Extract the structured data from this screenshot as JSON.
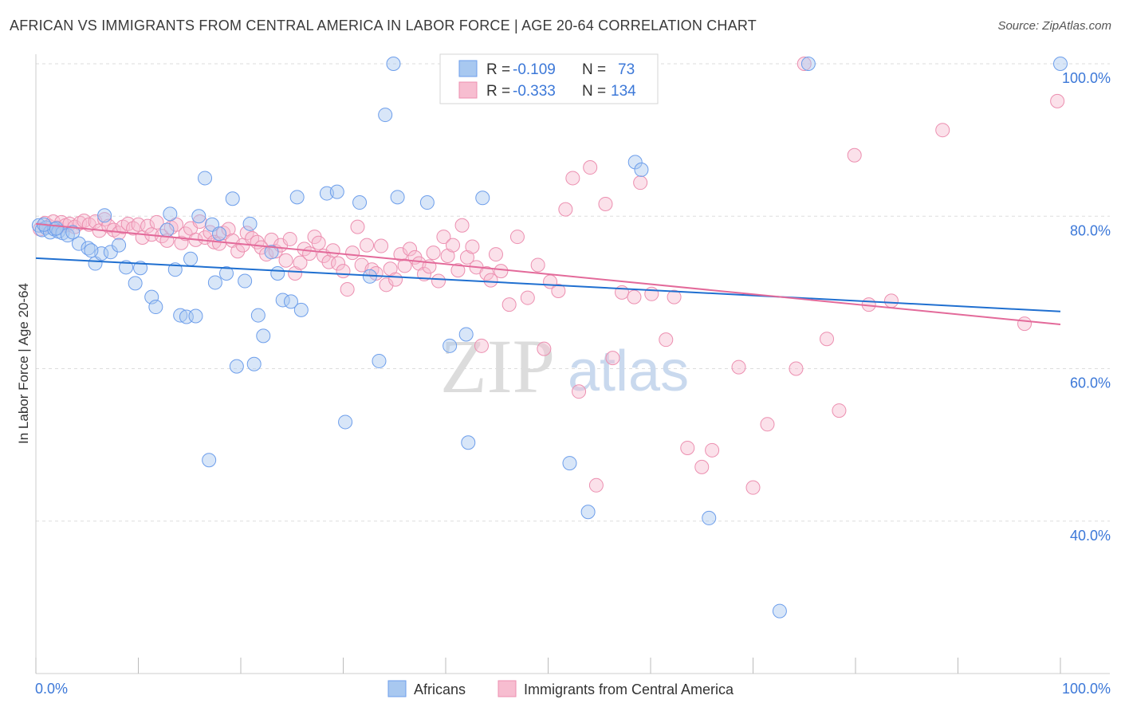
{
  "title": "AFRICAN VS IMMIGRANTS FROM CENTRAL AMERICA IN LABOR FORCE | AGE 20-64 CORRELATION CHART",
  "source": "Source: ZipAtlas.com",
  "watermark": {
    "zip": "ZIP",
    "atlas": "atlas"
  },
  "colors": {
    "blue_fill": "#a8c8f0",
    "blue_stroke": "#6d9eeb",
    "blue_line": "#1f6fd0",
    "pink_fill": "#f7bdd0",
    "pink_stroke": "#ec8fb0",
    "pink_line": "#e36a9a",
    "grid": "#dddddd",
    "axis_label": "#3c78d8"
  },
  "legend": {
    "rows": [
      {
        "r_label": "R =",
        "r_value": "-0.109",
        "n_label": "N =",
        "n_value": "73"
      },
      {
        "r_label": "R =",
        "r_value": "-0.333",
        "n_label": "N =",
        "n_value": "134"
      }
    ]
  },
  "bottom_legend": [
    "Africans",
    "Immigrants from Central America"
  ],
  "chart_data": {
    "type": "scatter",
    "title": "AFRICAN VS IMMIGRANTS FROM CENTRAL AMERICA IN LABOR FORCE | AGE 20-64 CORRELATION CHART",
    "xlabel": "",
    "ylabel": "In Labor Force | Age 20-64",
    "xlim": [
      0,
      100
    ],
    "ylim": [
      20,
      102
    ],
    "x_tick_labels": [
      "0.0%",
      "100.0%"
    ],
    "y_ticks": [
      40,
      60,
      80,
      100
    ],
    "y_tick_labels": [
      "40.0%",
      "60.0%",
      "80.0%",
      "100.0%"
    ],
    "grid": true,
    "legend_position": "top-center",
    "series": [
      {
        "name": "Africans",
        "color": "blue",
        "trend": {
          "x0": 0,
          "y0": 74.5,
          "x1": 100,
          "y1": 67.5
        },
        "points": [
          [
            0.3,
            78.8
          ],
          [
            0.6,
            78.2
          ],
          [
            1.0,
            78.5
          ],
          [
            1.4,
            77.9
          ],
          [
            1.8,
            78.3
          ],
          [
            2.2,
            78.0
          ],
          [
            2.6,
            77.8
          ],
          [
            3.1,
            77.5
          ],
          [
            4.2,
            76.4
          ],
          [
            5.1,
            75.8
          ],
          [
            5.8,
            73.8
          ],
          [
            6.4,
            75.1
          ],
          [
            6.7,
            80.1
          ],
          [
            7.3,
            75.3
          ],
          [
            8.1,
            76.2
          ],
          [
            8.8,
            73.3
          ],
          [
            9.7,
            71.2
          ],
          [
            10.2,
            73.2
          ],
          [
            11.3,
            69.4
          ],
          [
            11.7,
            68.1
          ],
          [
            12.8,
            78.2
          ],
          [
            13.1,
            80.3
          ],
          [
            13.6,
            73.0
          ],
          [
            14.1,
            67.0
          ],
          [
            14.7,
            66.8
          ],
          [
            15.1,
            74.4
          ],
          [
            15.6,
            66.9
          ],
          [
            15.9,
            80.0
          ],
          [
            16.5,
            85.0
          ],
          [
            16.9,
            48.0
          ],
          [
            17.2,
            78.9
          ],
          [
            17.5,
            71.3
          ],
          [
            17.9,
            77.7
          ],
          [
            18.6,
            72.5
          ],
          [
            19.2,
            82.3
          ],
          [
            19.6,
            60.3
          ],
          [
            20.4,
            71.5
          ],
          [
            20.9,
            79.0
          ],
          [
            21.3,
            60.6
          ],
          [
            21.7,
            67.0
          ],
          [
            22.2,
            64.3
          ],
          [
            23.0,
            75.3
          ],
          [
            23.6,
            72.5
          ],
          [
            24.1,
            69.0
          ],
          [
            24.9,
            68.8
          ],
          [
            25.5,
            82.5
          ],
          [
            25.9,
            67.7
          ],
          [
            28.4,
            83.0
          ],
          [
            29.4,
            83.2
          ],
          [
            30.2,
            53.0
          ],
          [
            31.6,
            81.8
          ],
          [
            32.6,
            72.1
          ],
          [
            33.5,
            61.0
          ],
          [
            34.1,
            93.3
          ],
          [
            34.9,
            100.0
          ],
          [
            35.3,
            82.5
          ],
          [
            38.2,
            81.8
          ],
          [
            40.4,
            63.0
          ],
          [
            42.0,
            64.5
          ],
          [
            42.2,
            50.3
          ],
          [
            43.6,
            82.4
          ],
          [
            52.1,
            47.6
          ],
          [
            53.9,
            41.2
          ],
          [
            58.5,
            87.1
          ],
          [
            59.1,
            86.1
          ],
          [
            65.7,
            40.4
          ],
          [
            72.6,
            28.2
          ],
          [
            75.4,
            100.0
          ],
          [
            100.0,
            100.0
          ],
          [
            0.8,
            78.9
          ],
          [
            2.0,
            78.4
          ],
          [
            3.6,
            77.9
          ],
          [
            5.4,
            75.5
          ]
        ]
      },
      {
        "name": "Immigrants from Central America",
        "color": "pink",
        "trend": {
          "x0": 0,
          "y0": 79.0,
          "x1": 100,
          "y1": 65.8
        },
        "points": [
          [
            0.4,
            78.3
          ],
          [
            0.9,
            79.1
          ],
          [
            1.3,
            78.7
          ],
          [
            1.7,
            79.3
          ],
          [
            2.1,
            78.5
          ],
          [
            2.5,
            79.2
          ],
          [
            2.9,
            78.8
          ],
          [
            3.3,
            79.0
          ],
          [
            3.8,
            78.6
          ],
          [
            4.3,
            79.1
          ],
          [
            4.7,
            79.4
          ],
          [
            5.2,
            78.9
          ],
          [
            5.8,
            79.3
          ],
          [
            6.2,
            78.1
          ],
          [
            6.7,
            79.6
          ],
          [
            7.1,
            78.7
          ],
          [
            7.6,
            78.2
          ],
          [
            8.1,
            77.8
          ],
          [
            8.5,
            78.6
          ],
          [
            9.0,
            79.0
          ],
          [
            9.5,
            78.4
          ],
          [
            10.0,
            78.9
          ],
          [
            10.4,
            77.2
          ],
          [
            10.9,
            78.7
          ],
          [
            11.3,
            77.6
          ],
          [
            11.8,
            79.2
          ],
          [
            12.3,
            77.4
          ],
          [
            12.8,
            76.8
          ],
          [
            13.2,
            78.5
          ],
          [
            13.7,
            78.9
          ],
          [
            14.2,
            76.5
          ],
          [
            14.6,
            77.7
          ],
          [
            15.1,
            78.4
          ],
          [
            15.6,
            76.9
          ],
          [
            16.0,
            79.3
          ],
          [
            16.5,
            77.2
          ],
          [
            17.0,
            77.9
          ],
          [
            17.4,
            76.6
          ],
          [
            17.9,
            76.4
          ],
          [
            18.3,
            77.8
          ],
          [
            18.8,
            78.3
          ],
          [
            19.2,
            76.8
          ],
          [
            19.7,
            75.4
          ],
          [
            20.2,
            76.2
          ],
          [
            20.6,
            77.8
          ],
          [
            21.1,
            77.1
          ],
          [
            21.6,
            76.6
          ],
          [
            22.0,
            75.9
          ],
          [
            22.5,
            75.0
          ],
          [
            23.0,
            76.9
          ],
          [
            23.4,
            75.4
          ],
          [
            23.9,
            76.2
          ],
          [
            24.4,
            74.2
          ],
          [
            24.8,
            77.0
          ],
          [
            25.3,
            72.5
          ],
          [
            25.8,
            73.9
          ],
          [
            26.2,
            75.7
          ],
          [
            26.7,
            75.1
          ],
          [
            27.2,
            77.3
          ],
          [
            27.6,
            76.5
          ],
          [
            28.1,
            74.8
          ],
          [
            28.6,
            74.0
          ],
          [
            29.0,
            75.5
          ],
          [
            29.5,
            73.8
          ],
          [
            30.0,
            72.8
          ],
          [
            30.4,
            70.4
          ],
          [
            30.9,
            75.2
          ],
          [
            31.4,
            78.6
          ],
          [
            31.8,
            73.6
          ],
          [
            32.3,
            76.2
          ],
          [
            32.8,
            73.0
          ],
          [
            33.2,
            72.5
          ],
          [
            33.7,
            76.1
          ],
          [
            34.2,
            71.0
          ],
          [
            34.6,
            73.1
          ],
          [
            35.1,
            71.7
          ],
          [
            35.6,
            75.0
          ],
          [
            36.0,
            73.5
          ],
          [
            36.5,
            75.7
          ],
          [
            37.0,
            74.6
          ],
          [
            37.4,
            73.8
          ],
          [
            37.9,
            72.4
          ],
          [
            38.4,
            73.4
          ],
          [
            38.8,
            75.2
          ],
          [
            39.3,
            71.5
          ],
          [
            39.8,
            77.3
          ],
          [
            40.2,
            74.8
          ],
          [
            40.7,
            76.2
          ],
          [
            41.2,
            72.9
          ],
          [
            41.6,
            78.8
          ],
          [
            42.1,
            74.6
          ],
          [
            42.6,
            76.0
          ],
          [
            43.0,
            73.3
          ],
          [
            43.5,
            63.0
          ],
          [
            44.0,
            72.5
          ],
          [
            44.4,
            71.6
          ],
          [
            44.9,
            75.0
          ],
          [
            45.4,
            72.8
          ],
          [
            46.2,
            68.4
          ],
          [
            47.0,
            77.3
          ],
          [
            48.0,
            69.3
          ],
          [
            49.0,
            73.6
          ],
          [
            49.6,
            62.6
          ],
          [
            50.2,
            71.4
          ],
          [
            51.0,
            70.2
          ],
          [
            51.7,
            80.9
          ],
          [
            52.4,
            85.0
          ],
          [
            53.0,
            57.0
          ],
          [
            54.1,
            86.4
          ],
          [
            54.7,
            44.7
          ],
          [
            55.6,
            81.6
          ],
          [
            56.3,
            61.4
          ],
          [
            57.2,
            70.0
          ],
          [
            58.4,
            69.4
          ],
          [
            59.0,
            84.4
          ],
          [
            60.1,
            69.8
          ],
          [
            61.5,
            63.8
          ],
          [
            62.3,
            69.4
          ],
          [
            63.6,
            49.6
          ],
          [
            65.0,
            47.1
          ],
          [
            66.0,
            49.3
          ],
          [
            68.6,
            60.2
          ],
          [
            70.0,
            44.4
          ],
          [
            71.4,
            52.7
          ],
          [
            74.2,
            60.0
          ],
          [
            77.2,
            63.9
          ],
          [
            78.4,
            54.5
          ],
          [
            79.9,
            88.0
          ],
          [
            81.3,
            68.4
          ],
          [
            83.5,
            68.9
          ],
          [
            96.5,
            65.9
          ],
          [
            99.7,
            95.1
          ],
          [
            75.0,
            100.0
          ],
          [
            88.5,
            91.3
          ]
        ]
      }
    ]
  }
}
